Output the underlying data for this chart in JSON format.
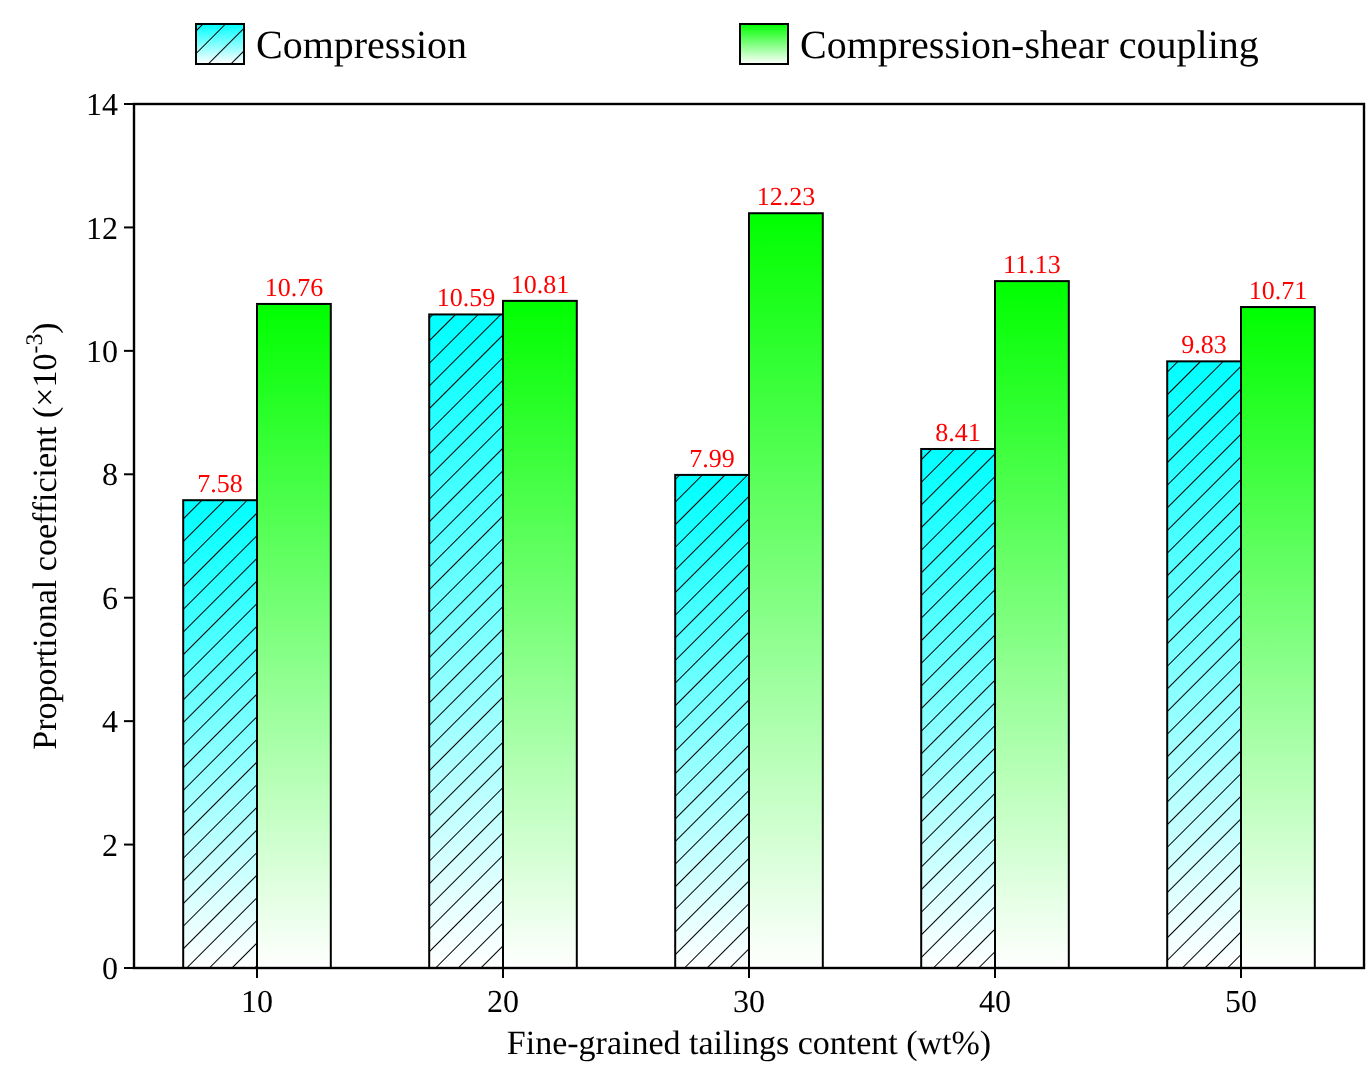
{
  "chart_data": {
    "type": "bar",
    "xlabel": "Fine-grained tailings content (wt%)",
    "ylabel": "Proportional coefficient (×10$^{-3}$)",
    "categories": [
      "10",
      "20",
      "30",
      "40",
      "50"
    ],
    "series": [
      {
        "name": "Compression",
        "color": "#00ffff",
        "values": [
          7.58,
          10.59,
          7.99,
          8.41,
          9.83
        ]
      },
      {
        "name": "Compression-shear coupling",
        "color": "#00ff00",
        "values": [
          10.76,
          10.81,
          12.23,
          11.13,
          10.71
        ]
      }
    ],
    "ylim": [
      0,
      14
    ],
    "yticks": [
      0,
      2,
      4,
      6,
      8,
      10,
      12,
      14
    ],
    "data_labels": true,
    "legend": "top",
    "grid": false
  }
}
